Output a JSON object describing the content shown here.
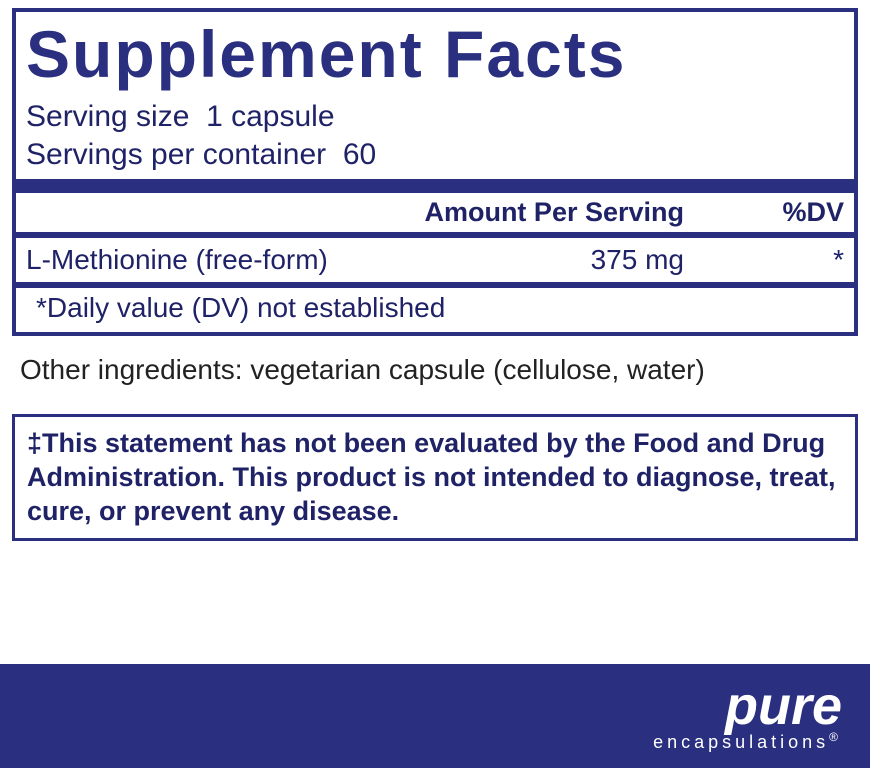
{
  "colors": {
    "primary": "#2a2f7f",
    "text": "#1f2266",
    "black": "#222222",
    "white": "#ffffff"
  },
  "typography": {
    "title_fontsize": 66,
    "serving_fontsize": 30,
    "header_fontsize": 27,
    "row_fontsize": 28,
    "footnote_fontsize": 28,
    "other_fontsize": 28,
    "disclaimer_fontsize": 27
  },
  "panel": {
    "title": "Supplement Facts",
    "serving_size_label": "Serving size",
    "serving_size_value": "1 capsule",
    "servings_per_container_label": "Servings per container",
    "servings_per_container_value": "60",
    "header_amount": "Amount Per Serving",
    "header_dv": "%DV",
    "rows": [
      {
        "name": "L-Methionine (free-form)",
        "amount": "375 mg",
        "dv": "*"
      }
    ],
    "footnote": "*Daily value (DV) not established"
  },
  "other_ingredients": "Other ingredients: vegetarian capsule (cellulose, water)",
  "disclaimer": "‡This statement has not been evaluated by the Food and Drug Administration. This product is not intended to diagnose, treat, cure, or prevent any disease.",
  "brand": {
    "name": "pure",
    "sub": "encapsulations",
    "reg": "®"
  }
}
